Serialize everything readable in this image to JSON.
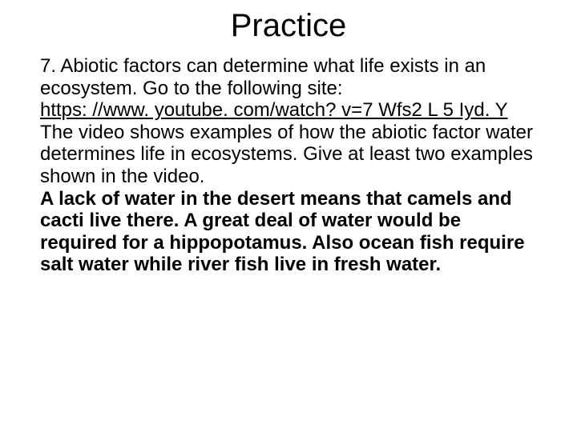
{
  "slide": {
    "title": "Practice",
    "question_prefix": "7. ",
    "question_part1": "Abiotic factors can determine what life exists in an ecosystem. Go to the following site:",
    "link_text": "https: //www. youtube. com/watch? v=7 Wfs2 L 5 Iyd. Y",
    "question_part2": "The video shows examples of how the abiotic factor water determines life in ecosystems. Give at least two examples shown in the video.",
    "answer": "A lack of water in the desert means that camels and cacti live there. A great deal of water would be required for a hippopotamus. Also ocean fish require salt water while river fish live in fresh water."
  },
  "style": {
    "background_color": "#ffffff",
    "text_color": "#000000",
    "title_fontsize": 40,
    "body_fontsize": 24,
    "font_family": "Arial"
  }
}
